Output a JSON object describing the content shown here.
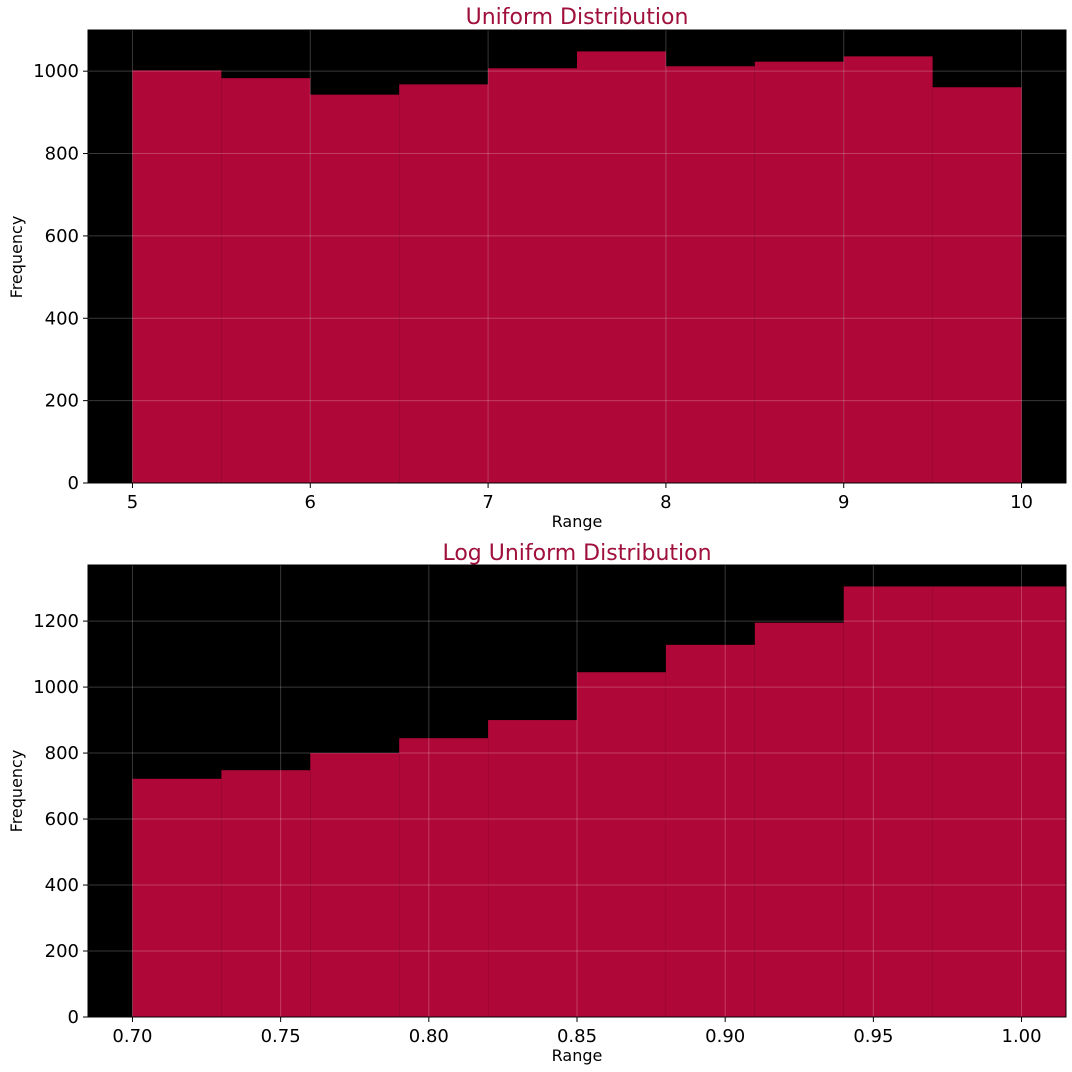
{
  "colors": {
    "background": "#000000",
    "bar": "#B00739",
    "title": "#A0103C",
    "grid": "#555555"
  },
  "chart_data": [
    {
      "type": "bar",
      "title": "Uniform Distribution",
      "xlabel": "Range",
      "ylabel": "Frequency",
      "xlim": [
        4.75,
        10.25
      ],
      "ylim": [
        0,
        1100
      ],
      "xticks": [
        5,
        6,
        7,
        8,
        9,
        10
      ],
      "yticks": [
        0,
        200,
        400,
        600,
        800,
        1000
      ],
      "xtick_labels": [
        "5",
        "6",
        "7",
        "8",
        "9",
        "10"
      ],
      "ytick_labels": [
        "0",
        "200",
        "400",
        "600",
        "800",
        "1000"
      ],
      "grid": true,
      "bins": [
        {
          "x0": 5.0,
          "x1": 5.5,
          "value": 1002
        },
        {
          "x0": 5.5,
          "x1": 6.0,
          "value": 983
        },
        {
          "x0": 6.0,
          "x1": 6.5,
          "value": 943
        },
        {
          "x0": 6.5,
          "x1": 7.0,
          "value": 968
        },
        {
          "x0": 7.0,
          "x1": 7.5,
          "value": 1007
        },
        {
          "x0": 7.5,
          "x1": 8.0,
          "value": 1048
        },
        {
          "x0": 8.0,
          "x1": 8.5,
          "value": 1012
        },
        {
          "x0": 8.5,
          "x1": 9.0,
          "value": 1023
        },
        {
          "x0": 9.0,
          "x1": 9.5,
          "value": 1036
        },
        {
          "x0": 9.5,
          "x1": 10.0,
          "value": 961
        }
      ]
    },
    {
      "type": "bar",
      "title": "Log Uniform Distribution",
      "xlabel": "Range",
      "ylabel": "Frequency",
      "xlim": [
        0.685,
        1.015
      ],
      "ylim": [
        0,
        1370
      ],
      "xticks": [
        0.7,
        0.75,
        0.8,
        0.85,
        0.9,
        0.95,
        1.0
      ],
      "yticks": [
        0,
        200,
        400,
        600,
        800,
        1000,
        1200
      ],
      "xtick_labels": [
        "0.70",
        "0.75",
        "0.80",
        "0.85",
        "0.90",
        "0.95",
        "1.00"
      ],
      "ytick_labels": [
        "0",
        "200",
        "400",
        "600",
        "800",
        "1000",
        "1200"
      ],
      "grid": true,
      "bins": [
        {
          "x0": 0.7,
          "x1": 0.73,
          "value": 722
        },
        {
          "x0": 0.73,
          "x1": 0.76,
          "value": 748
        },
        {
          "x0": 0.76,
          "x1": 0.79,
          "value": 800
        },
        {
          "x0": 0.79,
          "x1": 0.82,
          "value": 845
        },
        {
          "x0": 0.82,
          "x1": 0.85,
          "value": 900
        },
        {
          "x0": 0.85,
          "x1": 0.88,
          "value": 1045
        },
        {
          "x0": 0.88,
          "x1": 0.91,
          "value": 1128
        },
        {
          "x0": 0.91,
          "x1": 0.94,
          "value": 1195
        },
        {
          "x0": 0.94,
          "x1": 0.97,
          "value": 1305
        },
        {
          "x0": 0.97,
          "x1": 1.015,
          "value": 1305
        }
      ]
    }
  ]
}
